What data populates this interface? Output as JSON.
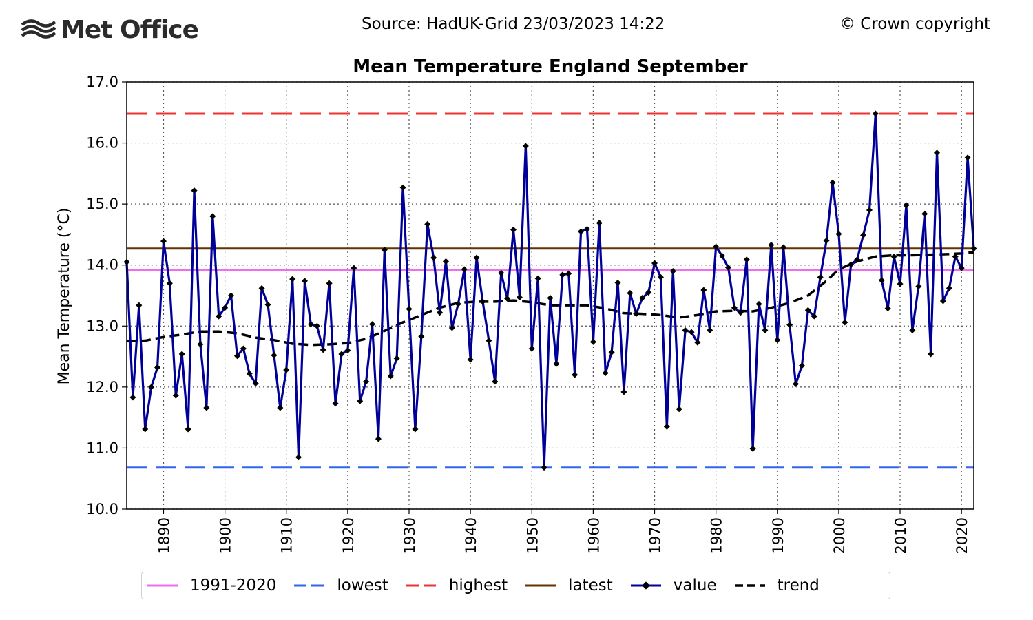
{
  "header": {
    "logo_text": "Met Office",
    "source": "Source: HadUK-Grid 23/03/2023 14:22",
    "copyright": "© Crown copyright"
  },
  "chart_data": {
    "type": "line",
    "title": "Mean Temperature England September",
    "ylabel": "Mean Temperature (°C)",
    "xlabel": "",
    "xlim": [
      1884,
      2022
    ],
    "ylim": [
      10.0,
      17.0
    ],
    "x_ticks": [
      1890,
      1900,
      1910,
      1920,
      1930,
      1940,
      1950,
      1960,
      1970,
      1980,
      1990,
      2000,
      2010,
      2020
    ],
    "y_ticks": [
      "10.0",
      "11.0",
      "12.0",
      "13.0",
      "14.0",
      "15.0",
      "16.0",
      "17.0"
    ],
    "grid": true,
    "legend_position": "bottom",
    "reference_lines": [
      {
        "name": "1991-2020",
        "value": 13.92,
        "color": "#ee6eee",
        "style": "solid"
      },
      {
        "name": "lowest",
        "value": 10.68,
        "color": "#3366ee",
        "style": "dashed"
      },
      {
        "name": "highest",
        "value": 16.48,
        "color": "#ee3333",
        "style": "dashed"
      },
      {
        "name": "latest",
        "value": 14.27,
        "color": "#663300",
        "style": "solid"
      }
    ],
    "series": [
      {
        "name": "value",
        "color": "#000099",
        "x_start": 1884,
        "values": [
          14.05,
          11.83,
          13.34,
          11.31,
          12.0,
          12.32,
          14.39,
          13.7,
          11.86,
          12.54,
          11.31,
          15.22,
          12.7,
          11.66,
          14.8,
          13.16,
          13.3,
          13.5,
          12.51,
          12.63,
          12.22,
          12.06,
          13.62,
          13.35,
          12.52,
          11.66,
          12.28,
          13.77,
          10.85,
          13.74,
          13.03,
          13.0,
          12.61,
          13.7,
          11.73,
          12.54,
          12.6,
          13.95,
          11.77,
          12.09,
          13.03,
          11.15,
          14.25,
          12.18,
          12.47,
          15.27,
          13.28,
          11.31,
          12.83,
          14.67,
          14.12,
          13.22,
          14.06,
          12.97,
          13.36,
          13.93,
          12.45,
          14.12,
          13.4,
          12.76,
          12.09,
          13.87,
          13.45,
          14.58,
          13.47,
          15.95,
          12.63,
          13.78,
          10.68,
          13.46,
          12.38,
          13.84,
          13.86,
          12.2,
          14.55,
          14.59,
          12.74,
          14.69,
          12.23,
          12.57,
          13.71,
          11.92,
          13.54,
          13.2,
          13.46,
          13.55,
          14.03,
          13.8,
          11.35,
          13.9,
          11.64,
          12.93,
          12.9,
          12.73,
          13.59,
          12.93,
          14.3,
          14.15,
          13.96,
          13.3,
          13.22,
          14.09,
          10.99,
          13.36,
          12.93,
          14.33,
          12.77,
          14.29,
          13.02,
          12.05,
          12.35,
          13.26,
          13.16,
          13.8,
          14.4,
          15.35,
          14.51,
          13.06,
          14.01,
          14.09,
          14.49,
          14.9,
          16.48,
          13.75,
          13.29,
          14.14,
          13.69,
          14.98,
          12.93,
          13.65,
          14.84,
          12.54,
          15.84,
          13.41,
          13.62,
          14.14,
          13.95,
          15.76,
          14.27
        ]
      },
      {
        "name": "trend",
        "color": "#000000",
        "points": [
          [
            1884,
            12.75
          ],
          [
            1887,
            12.76
          ],
          [
            1890,
            12.82
          ],
          [
            1893,
            12.86
          ],
          [
            1896,
            12.91
          ],
          [
            1899,
            12.91
          ],
          [
            1902,
            12.88
          ],
          [
            1905,
            12.81
          ],
          [
            1908,
            12.77
          ],
          [
            1911,
            12.71
          ],
          [
            1914,
            12.69
          ],
          [
            1917,
            12.7
          ],
          [
            1920,
            12.72
          ],
          [
            1923,
            12.79
          ],
          [
            1926,
            12.92
          ],
          [
            1929,
            13.06
          ],
          [
            1932,
            13.18
          ],
          [
            1935,
            13.3
          ],
          [
            1938,
            13.38
          ],
          [
            1941,
            13.4
          ],
          [
            1944,
            13.4
          ],
          [
            1947,
            13.42
          ],
          [
            1950,
            13.39
          ],
          [
            1953,
            13.34
          ],
          [
            1956,
            13.34
          ],
          [
            1959,
            13.34
          ],
          [
            1962,
            13.29
          ],
          [
            1965,
            13.21
          ],
          [
            1968,
            13.2
          ],
          [
            1971,
            13.18
          ],
          [
            1974,
            13.14
          ],
          [
            1977,
            13.18
          ],
          [
            1980,
            13.24
          ],
          [
            1983,
            13.25
          ],
          [
            1986,
            13.24
          ],
          [
            1989,
            13.3
          ],
          [
            1992,
            13.38
          ],
          [
            1995,
            13.5
          ],
          [
            1998,
            13.74
          ],
          [
            2000,
            13.93
          ],
          [
            2003,
            14.06
          ],
          [
            2006,
            14.14
          ],
          [
            2009,
            14.16
          ],
          [
            2012,
            14.16
          ],
          [
            2015,
            14.17
          ],
          [
            2018,
            14.18
          ],
          [
            2020,
            14.19
          ],
          [
            2022,
            14.21
          ]
        ]
      }
    ],
    "legend": [
      "1991-2020",
      "lowest",
      "highest",
      "latest",
      "value",
      "trend"
    ]
  }
}
